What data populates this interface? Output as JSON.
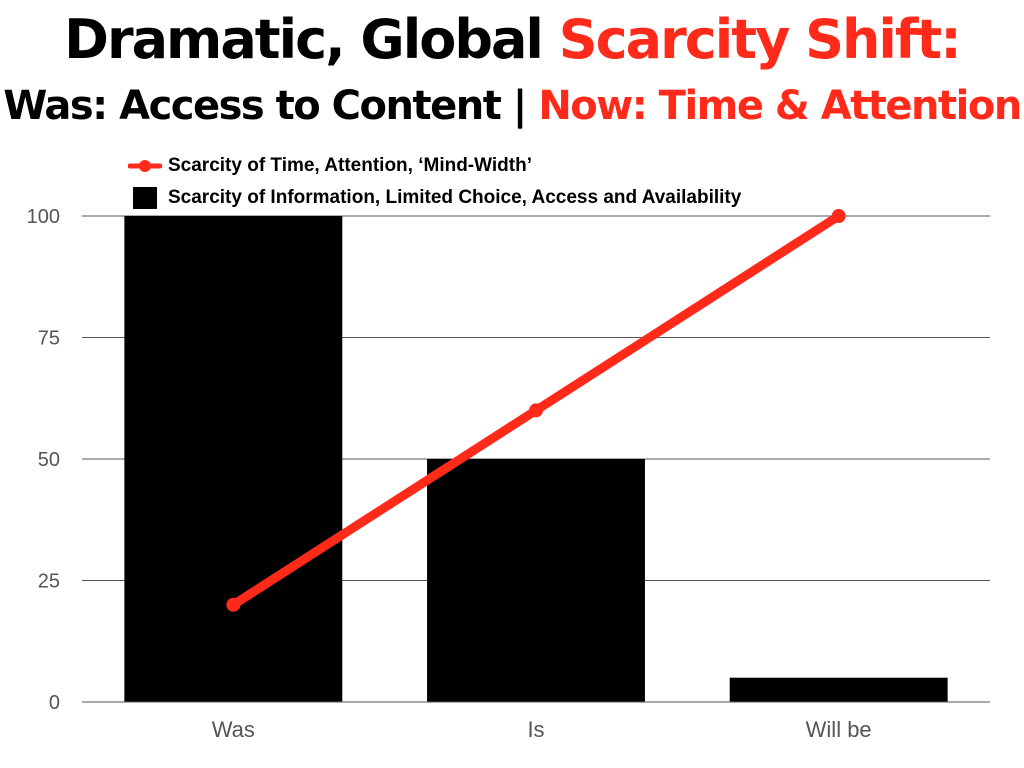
{
  "title": {
    "line1_black": "Dramatic, Global",
    "line1_red": "Scarcity Shift:",
    "line2_black": "Was: Access to Content |",
    "line2_red": "Now: Time & Attention"
  },
  "colors": {
    "accent": "#ff2a1a",
    "bars": "#000000",
    "grid": "#555555",
    "tick_text": "#555555"
  },
  "chart_data": {
    "type": "bar",
    "categories": [
      "Was",
      "Is",
      "Will be"
    ],
    "series": [
      {
        "name": "Scarcity of Information, Limited Choice, Access and Availability",
        "type": "bar",
        "values": [
          100,
          50,
          5
        ]
      },
      {
        "name": "Scarcity of Time, Attention, ‘Mind-Width’",
        "type": "line",
        "values": [
          20,
          60,
          100
        ]
      }
    ],
    "yticks": [
      "0",
      "25",
      "50",
      "75",
      "100"
    ],
    "ylim": [
      0,
      100
    ],
    "grid": true,
    "legend_position": "top-left"
  }
}
